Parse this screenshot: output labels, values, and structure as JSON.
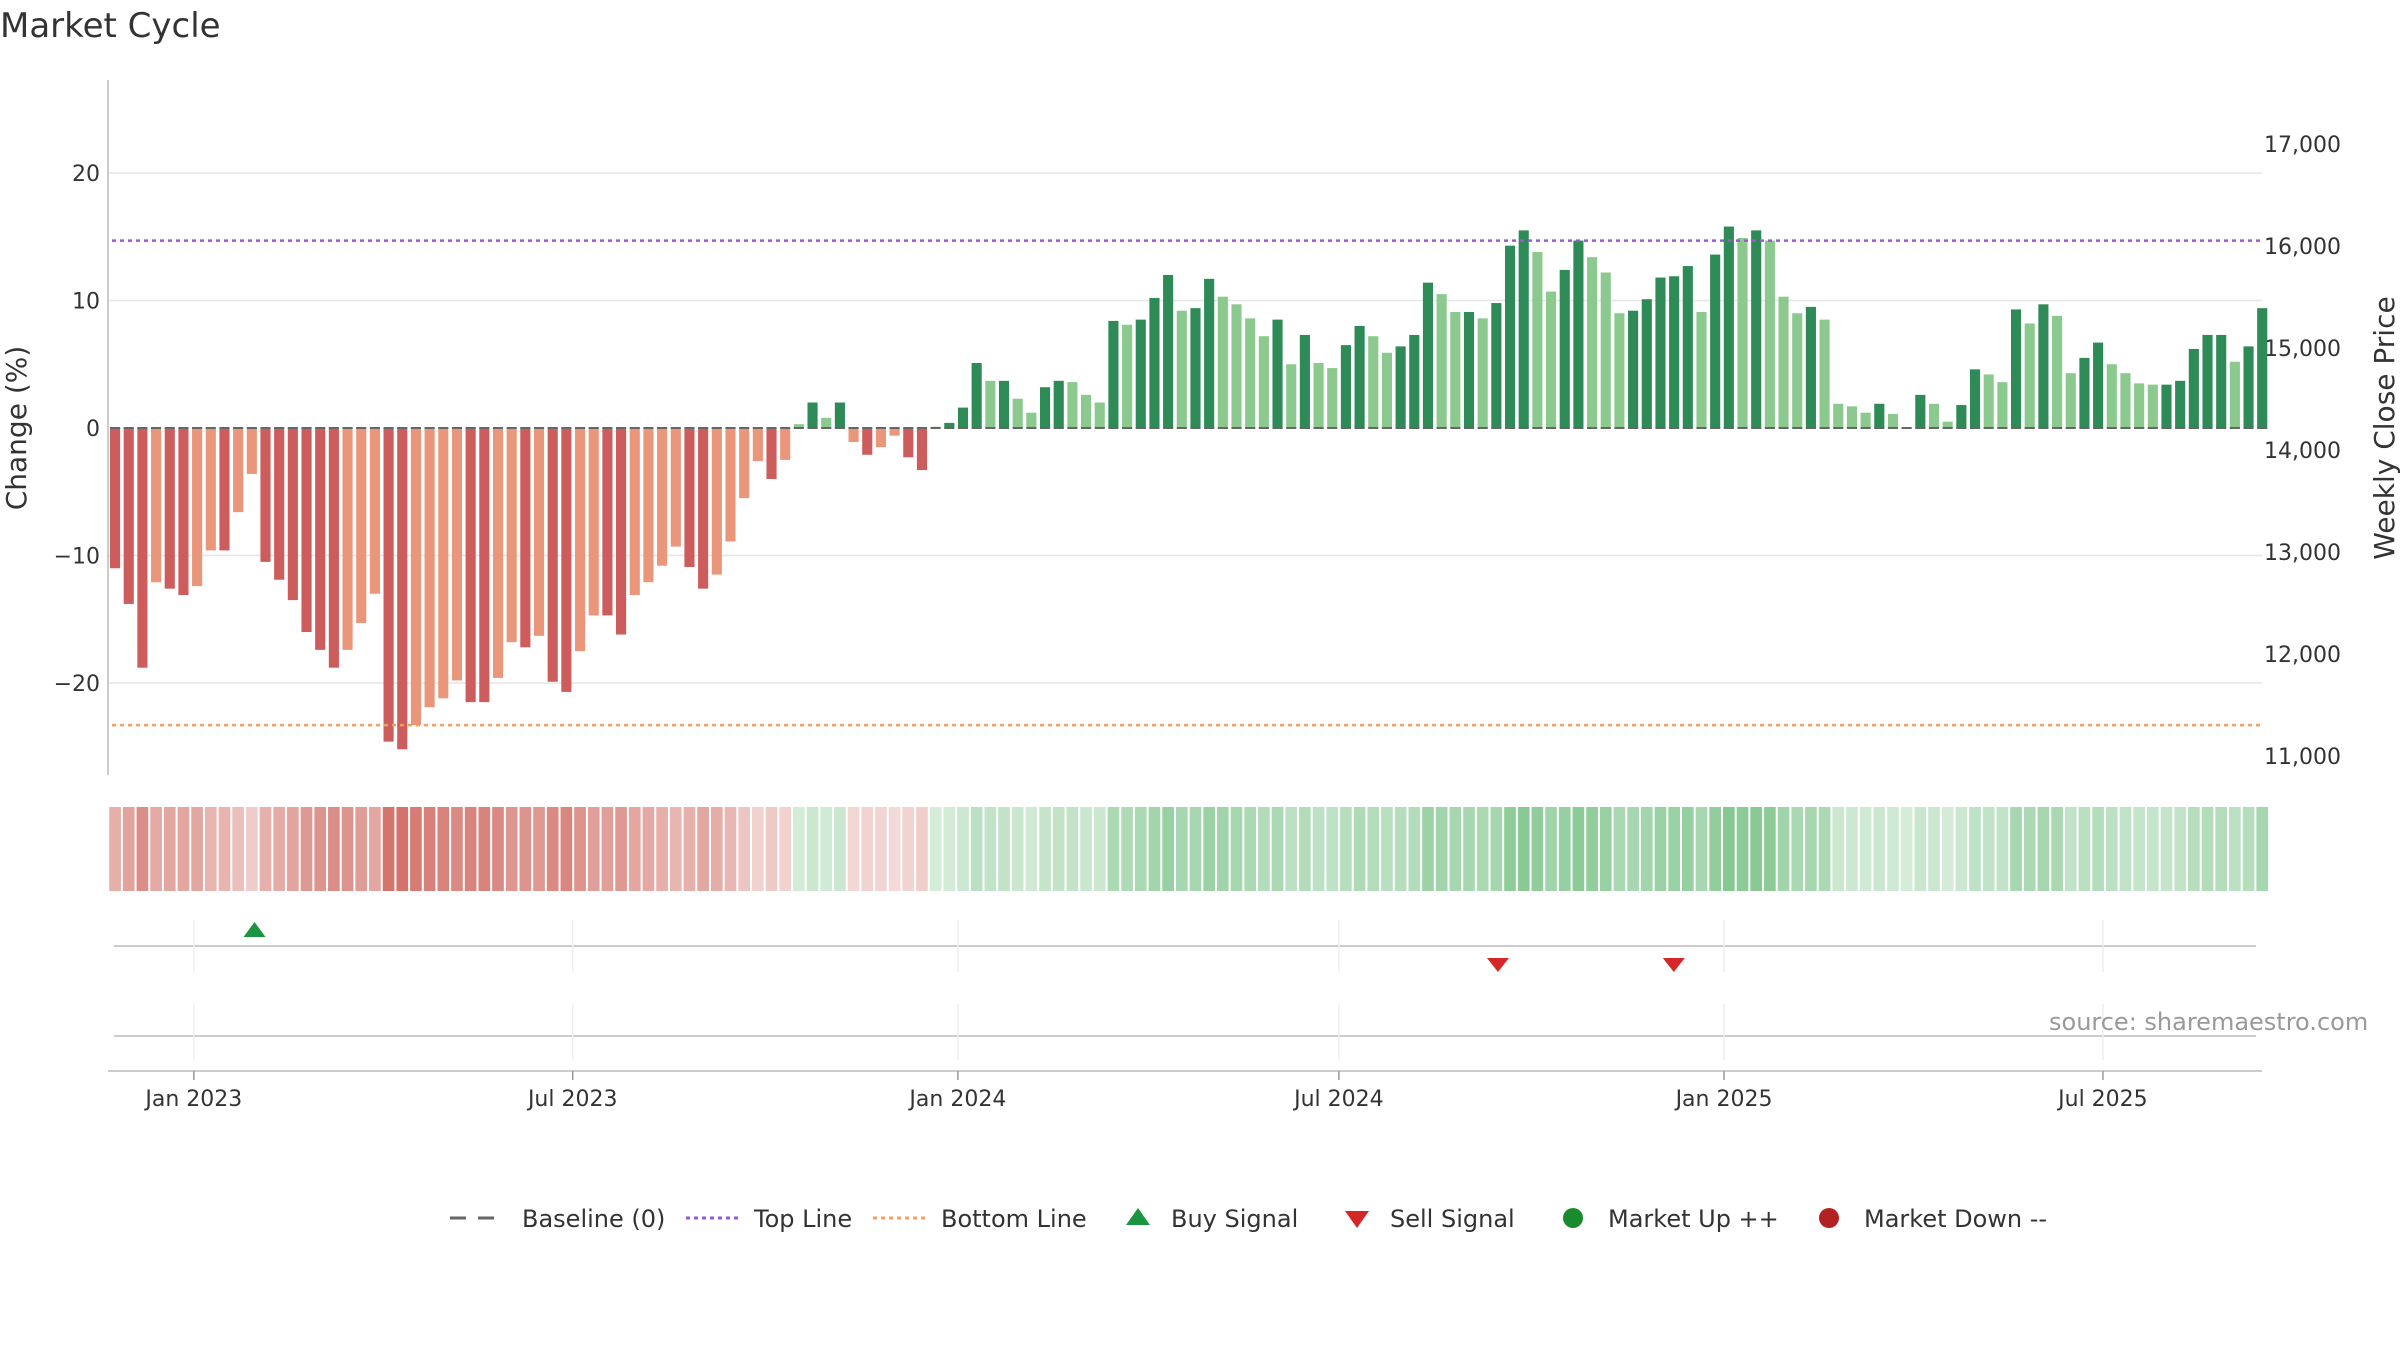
{
  "title": "Market Cycle",
  "source": "source: sharemaestro.com",
  "colors": {
    "up_dark": "#2e8b57",
    "up_light": "#8cc98e",
    "down_dark": "#cd5c5c",
    "down_light": "#e9967a",
    "top_line": "#9b59d0",
    "bottom_line": "#f0a060",
    "buy": "#1a9641",
    "sell": "#d62728",
    "market_up": "#1a8a2e",
    "market_down": "#b22222",
    "baseline": "#666666",
    "grid": "#e6e6e6"
  },
  "chart_data": {
    "type": "bar",
    "title": "Market Cycle",
    "ylabel": "Change (%)",
    "y2label": "Weekly Close Price",
    "ylim": [
      -27,
      27
    ],
    "y2lim": [
      10900,
      17300
    ],
    "yticks": [
      20,
      10,
      0,
      -10,
      -20
    ],
    "yticklabels": [
      "20",
      "10",
      "0",
      "−10",
      "−20"
    ],
    "y2ticks": [
      17000,
      16000,
      15000,
      14000,
      13000,
      12000,
      11000
    ],
    "y2ticklabels": [
      "17,000",
      "16,000",
      "15,000",
      "14,000",
      "13,000",
      "12,000",
      "11,000"
    ],
    "xlabels": [
      "Jan 2023",
      "Jul 2023",
      "Jan 2024",
      "Jul 2024",
      "Jan 2025",
      "Jul 2025"
    ],
    "xlabel_dates": [
      "2023-01-01",
      "2023-07-01",
      "2024-01-01",
      "2024-07-01",
      "2025-01-01",
      "2025-07-01"
    ],
    "x_start": "2022-11-21",
    "x_end": "2025-09-15",
    "series": [
      {
        "name": "Change (%)",
        "start_date": "2022-11-21",
        "interval_days": 7,
        "values": [
          -11.0,
          -13.8,
          -18.8,
          -12.1,
          -12.6,
          -13.1,
          -12.4,
          -9.6,
          -9.6,
          -6.6,
          -3.6,
          -10.5,
          -11.9,
          -13.5,
          -16.0,
          -17.4,
          -18.8,
          -17.4,
          -15.3,
          -13.0,
          -24.6,
          -25.2,
          -23.3,
          -21.9,
          -21.2,
          -19.8,
          -21.5,
          -21.5,
          -19.6,
          -16.8,
          -17.2,
          -16.3,
          -19.9,
          -20.7,
          -17.5,
          -14.7,
          -14.7,
          -16.2,
          -13.1,
          -12.1,
          -10.8,
          -9.3,
          -10.9,
          -12.6,
          -11.5,
          -8.9,
          -5.5,
          -2.6,
          -4.0,
          -2.5,
          0.3,
          2.0,
          0.8,
          2.0,
          -1.1,
          -2.1,
          -1.5,
          -0.6,
          -2.3,
          -3.3,
          0.1,
          0.4,
          1.6,
          5.1,
          3.7,
          3.7,
          2.3,
          1.2,
          3.2,
          3.7,
          3.6,
          2.6,
          2.0,
          8.4,
          8.1,
          8.5,
          10.2,
          12.0,
          9.2,
          9.4,
          11.7,
          10.3,
          9.7,
          8.6,
          7.2,
          8.5,
          5.0,
          7.3,
          5.1,
          4.7,
          6.5,
          8.0,
          7.2,
          5.9,
          6.4,
          7.3,
          11.4,
          10.5,
          9.1,
          9.1,
          8.6,
          9.8,
          14.3,
          15.5,
          13.8,
          10.7,
          12.4,
          14.7,
          13.4,
          12.2,
          9.0,
          9.2,
          10.1,
          11.8,
          11.9,
          12.7,
          9.1,
          13.6,
          15.8,
          14.9,
          15.5,
          14.7,
          10.3,
          9.0,
          9.5,
          8.5,
          1.9,
          1.7,
          1.2,
          1.9,
          1.1,
          0.0,
          2.6,
          1.9,
          0.5,
          1.8,
          4.6,
          4.2,
          3.6,
          9.3,
          8.2,
          9.7,
          8.8,
          4.3,
          5.5,
          6.7,
          5.0,
          4.3,
          3.5,
          3.4,
          3.4,
          3.7,
          6.2,
          7.3,
          7.3,
          5.2,
          6.4,
          9.4
        ]
      }
    ],
    "top_line": 14.7,
    "bottom_line": -23.3,
    "baseline": 0,
    "signals": [
      {
        "type": "buy",
        "date": "2023-01-30"
      },
      {
        "type": "sell",
        "date": "2024-09-15"
      },
      {
        "type": "sell",
        "date": "2024-12-08"
      }
    ],
    "legend": [
      {
        "label": "Baseline (0)",
        "kind": "dash"
      },
      {
        "label": "Top Line",
        "kind": "dot-purple"
      },
      {
        "label": "Bottom Line",
        "kind": "dot-orange"
      },
      {
        "label": "Buy Signal",
        "kind": "tri-up"
      },
      {
        "label": "Sell Signal",
        "kind": "tri-down"
      },
      {
        "label": "Market Up ++",
        "kind": "dot-green"
      },
      {
        "label": "Market Down --",
        "kind": "dot-red"
      }
    ]
  }
}
